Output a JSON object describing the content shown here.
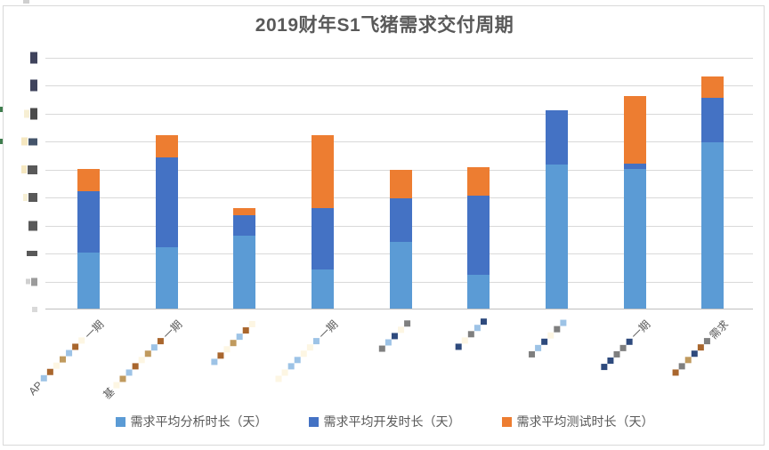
{
  "window": {
    "background": "#ffffff",
    "border_color": "#d9d9d9"
  },
  "chart_data": {
    "type": "bar",
    "subtype": "stacked-vertical",
    "title": "2019财年S1飞猪需求交付周期",
    "xlabel": "",
    "ylabel": "",
    "ylim": [
      0,
      9
    ],
    "y_tick_step": 1,
    "y_tick_labels_redacted": true,
    "gridlines": true,
    "legend_position": "bottom",
    "categories": [
      {
        "redacted": true,
        "visible_start": "AP",
        "visible_end": "一期",
        "mosaic_len": 7
      },
      {
        "redacted": true,
        "visible_start": "基",
        "visible_end": "一期",
        "mosaic_len": 8
      },
      {
        "redacted": true,
        "visible_start": "",
        "visible_end": "",
        "mosaic_len": 7
      },
      {
        "redacted": true,
        "visible_start": "",
        "visible_end": "一期",
        "mosaic_len": 7
      },
      {
        "redacted": true,
        "visible_start": "",
        "visible_end": "",
        "mosaic_len": 5
      },
      {
        "redacted": true,
        "visible_start": "",
        "visible_end": "",
        "mosaic_len": 5
      },
      {
        "redacted": true,
        "visible_start": "",
        "visible_end": "",
        "mosaic_len": 6
      },
      {
        "redacted": true,
        "visible_start": "",
        "visible_end": "一期",
        "mosaic_len": 5
      },
      {
        "redacted": true,
        "visible_start": "",
        "visible_end": "需求",
        "mosaic_len": 6
      }
    ],
    "series": [
      {
        "name": "需求平均分析时长（天）",
        "color": "#5B9BD5",
        "values": [
          2.0,
          2.2,
          2.6,
          1.4,
          2.4,
          1.2,
          5.15,
          5.0,
          5.95
        ]
      },
      {
        "name": "需求平均开发时长（天）",
        "color": "#4472C4",
        "values": [
          2.2,
          3.2,
          0.75,
          2.2,
          1.55,
          2.85,
          1.95,
          0.2,
          1.6
        ]
      },
      {
        "name": "需求平均测试时长（天）",
        "color": "#ED7D31",
        "values": [
          0.8,
          0.8,
          0.25,
          2.6,
          1.0,
          1.0,
          0,
          2.4,
          0.75
        ]
      }
    ]
  },
  "colors": {
    "gridline": "#D9D9D9",
    "axis_line": "#BFBFBF",
    "text": "#595959",
    "edge_mark_green": "#3F7D4E"
  },
  "redaction": {
    "mosaic_palette": [
      "#9dc3e6",
      "#5b9bd5",
      "#2e4a7d",
      "#843c0c",
      "#a9662d",
      "#f2e5c9",
      "#fdf6e3",
      "#e6eef7",
      "#7f7f7f",
      "#1f2d50",
      "#c09a5e",
      "#bfe3e0"
    ],
    "y_tick_blobs": [
      [
        {
          "c": "#3f435c",
          "w": 8,
          "h": 13
        }
      ],
      [
        {
          "c": "#3f435c",
          "w": 8,
          "h": 13
        }
      ],
      [
        {
          "c": "#f7efd4",
          "w": 6,
          "h": 9
        },
        {
          "c": "#4b4b4b",
          "w": 8,
          "h": 13
        }
      ],
      [
        {
          "c": "#f5e7c0",
          "w": 7,
          "h": 9
        },
        {
          "c": "#44546a",
          "w": 10,
          "h": 8
        }
      ],
      [
        {
          "c": "#f5e7c0",
          "w": 6,
          "h": 9
        },
        {
          "c": "#595959",
          "w": 11,
          "h": 10
        }
      ],
      [
        {
          "c": "#f7efd4",
          "w": 5,
          "h": 8
        },
        {
          "c": "#595959",
          "w": 10,
          "h": 10
        }
      ],
      [
        {
          "c": "#595959",
          "w": 10,
          "h": 11
        }
      ],
      [
        {
          "c": "#595959",
          "w": 12,
          "h": 6
        }
      ],
      [
        {
          "c": "#d0d0d0",
          "w": 5,
          "h": 6
        },
        {
          "c": "#9b9b9b",
          "w": 7,
          "h": 9
        }
      ],
      [
        {
          "c": "#d9d9d9",
          "w": 6,
          "h": 6
        }
      ]
    ],
    "edge_marks_y": [
      120,
      156
    ]
  }
}
